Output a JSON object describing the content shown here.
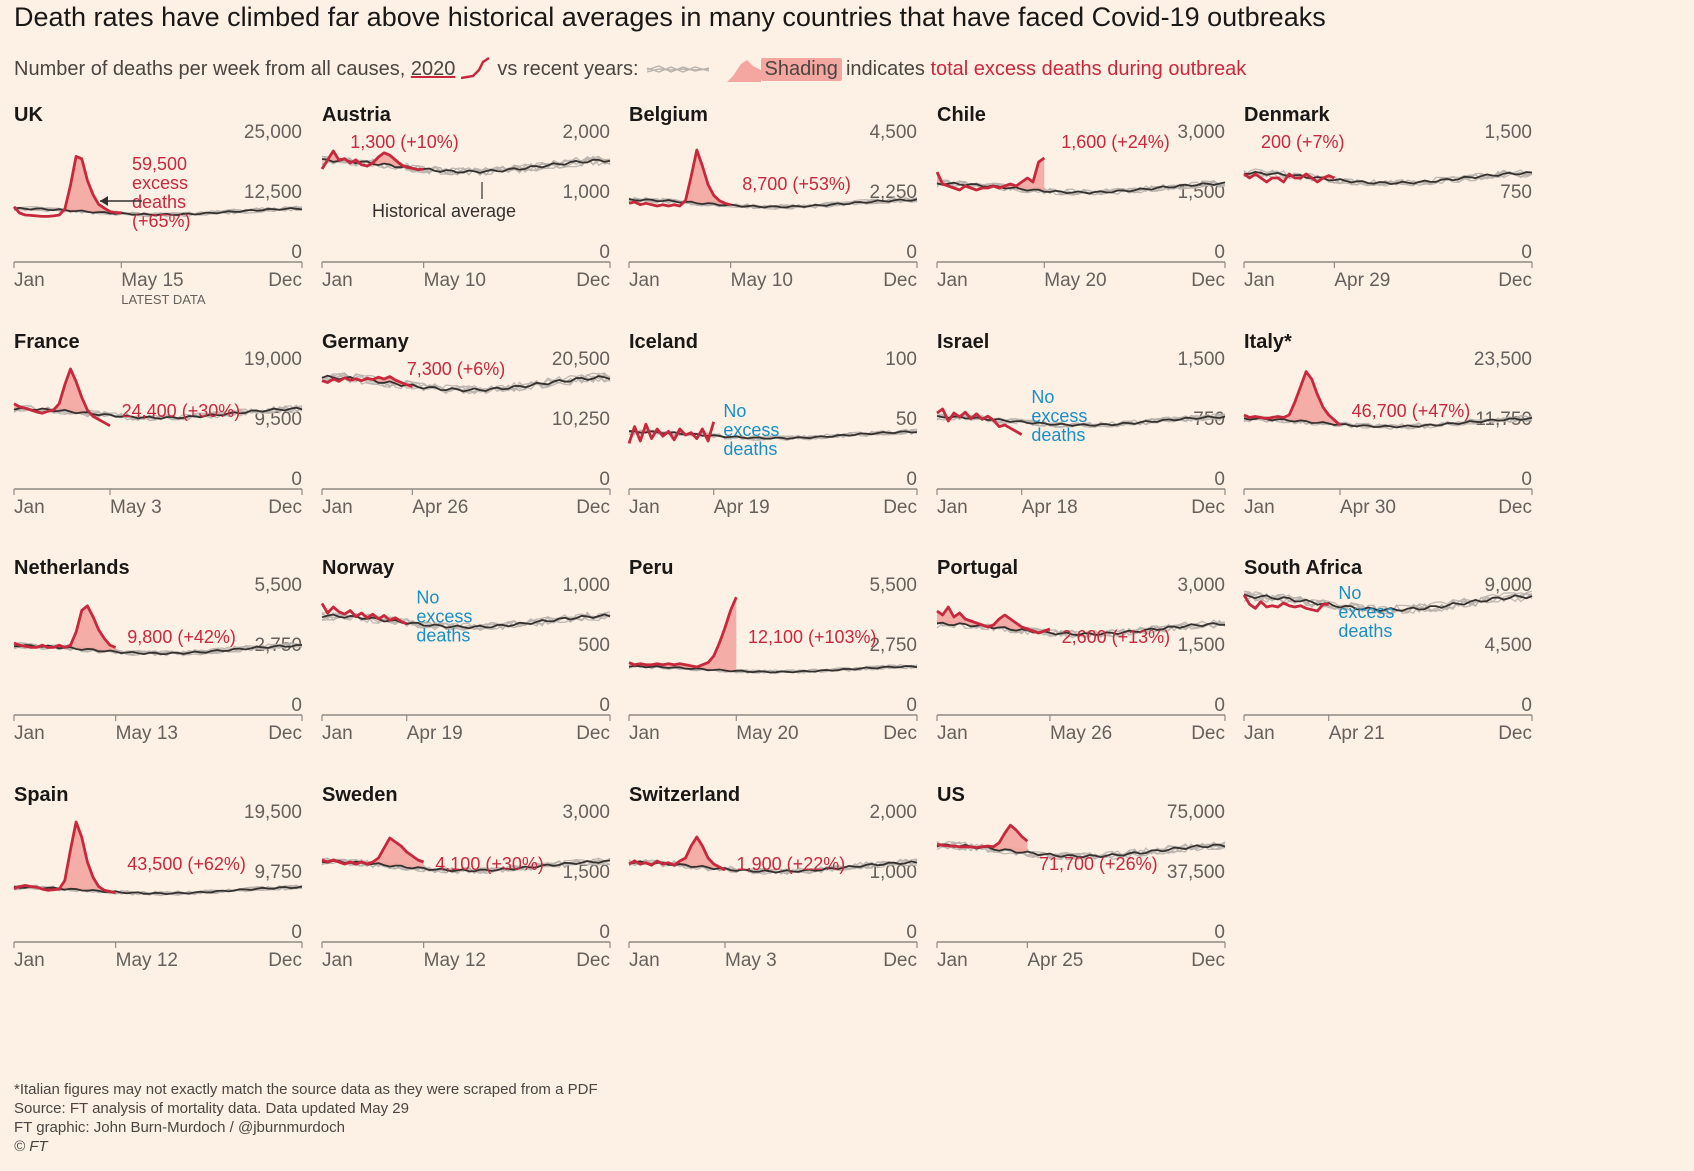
{
  "header": {
    "title": "Death rates have climbed far above historical averages in many countries that have faced Covid-19 outbreaks",
    "subtitle_part1": "Number of deaths per week from all causes,",
    "subtitle_2020": "2020",
    "subtitle_part2": "vs recent years:",
    "subtitle_shading": "Shading",
    "subtitle_part3": "indicates",
    "subtitle_excess": "total excess deaths during outbreak"
  },
  "footer": {
    "note": "*Italian figures may not exactly match the source data as they were scraped from a PDF",
    "source": "Source: FT analysis of mortality data. Data updated May 29",
    "graphic": "FT graphic: John Burn-Murdoch / @jburnmurdoch",
    "copyright": "© FT"
  },
  "colors": {
    "red": "#c8283c",
    "blue": "#1a8fc4",
    "shade": "#f4a6a0",
    "avg": "#33302e",
    "hist": "#b9b3ad"
  },
  "chart_data": [
    {
      "type": "line",
      "title": "UK",
      "ylim": [
        0,
        25000
      ],
      "ytick_labels": [
        "25,000",
        "12,500",
        "0"
      ],
      "x_ticks": [
        "Jan",
        "May 15",
        "Dec"
      ],
      "latest_note": "LATEST DATA",
      "latest_week": 20,
      "baseline": 10500,
      "y2020": [
        11500,
        10200,
        9800,
        9700,
        9600,
        9500,
        9500,
        9600,
        9800,
        11000,
        16000,
        22000,
        21500,
        17000,
        14000,
        12000,
        11200,
        10500,
        10300,
        10200
      ],
      "annotation": [
        "59,500",
        "excess",
        "deaths",
        "(+65%)"
      ],
      "annotation_color": "red",
      "annotation_pos": "mid-right",
      "arrow": true
    },
    {
      "type": "line",
      "title": "Austria",
      "ylim": [
        0,
        2000
      ],
      "ytick_labels": [
        "2,000",
        "1,000",
        "0"
      ],
      "x_ticks": [
        "Jan",
        "May 10",
        "Dec"
      ],
      "latest_week": 19,
      "baseline": 1600,
      "y2020": [
        1550,
        1700,
        1850,
        1700,
        1720,
        1650,
        1700,
        1620,
        1600,
        1650,
        1750,
        1820,
        1780,
        1700,
        1620,
        1580,
        1560,
        1540,
        1550
      ],
      "annotation": [
        "1,300 (+10%)"
      ],
      "annotation_color": "red",
      "annotation_pos": "top",
      "avg_label": "Historical average"
    },
    {
      "type": "line",
      "title": "Belgium",
      "ylim": [
        0,
        4500
      ],
      "ytick_labels": [
        "4,500",
        "2,250",
        "0"
      ],
      "x_ticks": [
        "Jan",
        "May 10",
        "Dec"
      ],
      "latest_week": 19,
      "baseline": 2200,
      "y2020": [
        2200,
        2250,
        2150,
        2200,
        2150,
        2100,
        2150,
        2100,
        2150,
        2100,
        2300,
        3200,
        4200,
        3600,
        2900,
        2500,
        2300,
        2200,
        2150
      ],
      "annotation": [
        "8,700 (+53%)"
      ],
      "annotation_color": "red",
      "annotation_pos": "mid"
    },
    {
      "type": "line",
      "title": "Chile",
      "ylim": [
        0,
        3000
      ],
      "ytick_labels": [
        "3,000",
        "1,500",
        "0"
      ],
      "x_ticks": [
        "Jan",
        "May 20",
        "Dec"
      ],
      "latest_week": 20,
      "baseline": 1850,
      "y2020": [
        2250,
        1950,
        1900,
        1850,
        1800,
        1900,
        1850,
        1800,
        1850,
        1850,
        1900,
        1850,
        1900,
        1950,
        1900,
        2000,
        2100,
        2000,
        2500,
        2600
      ],
      "annotation": [
        "1,600 (+24%)"
      ],
      "annotation_color": "red",
      "annotation_pos": "top"
    },
    {
      "type": "line",
      "title": "Denmark",
      "ylim": [
        0,
        1500
      ],
      "ytick_labels": [
        "1,500",
        "750",
        "0"
      ],
      "x_ticks": [
        "Jan",
        "Apr 29",
        "Dec"
      ],
      "latest_week": 17,
      "baseline": 1050,
      "y2020": [
        1100,
        1050,
        1100,
        1050,
        1000,
        1050,
        1050,
        1000,
        1100,
        1050,
        1050,
        1100,
        1050,
        1000,
        1050,
        1080,
        1050
      ],
      "annotation": [
        "200 (+7%)"
      ],
      "annotation_color": "red",
      "annotation_pos": "top"
    },
    {
      "type": "line",
      "title": "France",
      "ylim": [
        0,
        19000
      ],
      "ytick_labels": [
        "19,000",
        "9,500",
        "0"
      ],
      "x_ticks": [
        "Jan",
        "May 3",
        "Dec"
      ],
      "latest_week": 18,
      "baseline": 12000,
      "y2020": [
        13500,
        13000,
        12800,
        12500,
        12200,
        12000,
        12300,
        12500,
        13500,
        16500,
        19000,
        17000,
        14500,
        12500,
        11500,
        11000,
        10500,
        10000
      ],
      "annotation": [
        "24,400 (+30%)"
      ],
      "annotation_color": "red",
      "annotation_pos": "mid"
    },
    {
      "type": "line",
      "title": "Germany",
      "ylim": [
        0,
        20500
      ],
      "ytick_labels": [
        "20,500",
        "10,250",
        "0"
      ],
      "x_ticks": [
        "Jan",
        "Apr 26",
        "Dec"
      ],
      "latest_week": 17,
      "baseline": 18000,
      "y2020": [
        18500,
        18200,
        18800,
        18400,
        19000,
        18600,
        18800,
        18500,
        18900,
        18700,
        19100,
        18800,
        19200,
        18600,
        18200,
        17800,
        17500
      ],
      "annotation": [
        "7,300 (+6%)"
      ],
      "annotation_color": "red",
      "annotation_pos": "top"
    },
    {
      "type": "line",
      "title": "Iceland",
      "ylim": [
        0,
        100
      ],
      "ytick_labels": [
        "100",
        "50",
        "0"
      ],
      "x_ticks": [
        "Jan",
        "Apr 19",
        "Dec"
      ],
      "latest_week": 16,
      "baseline": 45,
      "y2020": [
        38,
        52,
        40,
        54,
        42,
        50,
        44,
        48,
        41,
        50,
        45,
        47,
        42,
        50,
        40,
        56
      ],
      "annotation": [
        "No",
        "excess",
        "deaths"
      ],
      "annotation_color": "blue",
      "annotation_pos": "mid"
    },
    {
      "type": "line",
      "title": "Israel",
      "ylim": [
        0,
        1500
      ],
      "ytick_labels": [
        "1,500",
        "750",
        "0"
      ],
      "x_ticks": [
        "Jan",
        "Apr 18",
        "Dec"
      ],
      "latest_week": 16,
      "baseline": 850,
      "y2020": [
        950,
        1000,
        850,
        950,
        900,
        960,
        880,
        940,
        870,
        910,
        860,
        780,
        800,
        760,
        720,
        680
      ],
      "annotation": [
        "No",
        "excess",
        "deaths"
      ],
      "annotation_color": "blue",
      "annotation_pos": "mid"
    },
    {
      "type": "line",
      "title": "Italy*",
      "ylim": [
        0,
        23500
      ],
      "ytick_labels": [
        "23,500",
        "11,750",
        "0"
      ],
      "x_ticks": [
        "Jan",
        "Apr 30",
        "Dec"
      ],
      "latest_week": 18,
      "baseline": 13000,
      "y2020": [
        14500,
        14000,
        14200,
        14000,
        13800,
        14000,
        14200,
        14000,
        14500,
        17000,
        20000,
        23000,
        21500,
        18500,
        16000,
        14500,
        13500,
        12500
      ],
      "annotation": [
        "46,700 (+47%)"
      ],
      "annotation_color": "red",
      "annotation_pos": "mid"
    },
    {
      "type": "line",
      "title": "Netherlands",
      "ylim": [
        0,
        5500
      ],
      "ytick_labels": [
        "5,500",
        "2,750",
        "0"
      ],
      "x_ticks": [
        "Jan",
        "May 13",
        "Dec"
      ],
      "latest_week": 19,
      "baseline": 3000,
      "y2020": [
        3300,
        3200,
        3150,
        3100,
        3100,
        3200,
        3100,
        3100,
        3200,
        3100,
        3200,
        3800,
        4800,
        5000,
        4500,
        3900,
        3500,
        3200,
        3100
      ],
      "annotation": [
        "9,800 (+42%)"
      ],
      "annotation_color": "red",
      "annotation_pos": "mid"
    },
    {
      "type": "line",
      "title": "Norway",
      "ylim": [
        0,
        1000
      ],
      "ytick_labels": [
        "1,000",
        "500",
        "0"
      ],
      "x_ticks": [
        "Jan",
        "Apr 19",
        "Dec"
      ],
      "latest_week": 16,
      "baseline": 780,
      "y2020": [
        930,
        850,
        900,
        860,
        840,
        870,
        820,
        850,
        810,
        840,
        800,
        830,
        790,
        810,
        780,
        760
      ],
      "annotation": [
        "No",
        "excess",
        "deaths"
      ],
      "annotation_color": "blue",
      "annotation_pos": "mid"
    },
    {
      "type": "line",
      "title": "Peru",
      "ylim": [
        0,
        5500
      ],
      "ytick_labels": [
        "5,500",
        "2,750",
        "0"
      ],
      "x_ticks": [
        "Jan",
        "May 20",
        "Dec"
      ],
      "latest_week": 20,
      "baseline": 2100,
      "y2020": [
        2400,
        2300,
        2350,
        2300,
        2300,
        2350,
        2300,
        2350,
        2300,
        2350,
        2300,
        2250,
        2200,
        2300,
        2400,
        2700,
        3300,
        4000,
        4800,
        5400
      ],
      "annotation": [
        "12,100 (+103%)"
      ],
      "annotation_color": "red",
      "annotation_pos": "mid"
    },
    {
      "type": "line",
      "title": "Portugal",
      "ylim": [
        0,
        3000
      ],
      "ytick_labels": [
        "3,000",
        "1,500",
        "0"
      ],
      "x_ticks": [
        "Jan",
        "May 26",
        "Dec"
      ],
      "latest_week": 21,
      "baseline": 2150,
      "y2020": [
        2600,
        2500,
        2700,
        2450,
        2550,
        2400,
        2350,
        2300,
        2250,
        2200,
        2250,
        2400,
        2500,
        2400,
        2300,
        2200,
        2150,
        2100,
        2050,
        2100,
        2150
      ],
      "annotation": [
        "2,600 (+13%)"
      ],
      "annotation_color": "red",
      "annotation_pos": "mid"
    },
    {
      "type": "line",
      "title": "South Africa",
      "ylim": [
        0,
        9000
      ],
      "ytick_labels": [
        "9,000",
        "4,500",
        "0"
      ],
      "x_ticks": [
        "Jan",
        "Apr 21",
        "Dec"
      ],
      "latest_week": 16,
      "baseline": 8400,
      "y2020": [
        9000,
        8300,
        8000,
        8500,
        8100,
        8200,
        8100,
        8400,
        8200,
        8100,
        8200,
        8000,
        7900,
        7800,
        8300,
        8300
      ],
      "annotation": [
        "No",
        "excess",
        "deaths"
      ],
      "annotation_color": "blue",
      "annotation_pos": "mid"
    },
    {
      "type": "line",
      "title": "Spain",
      "ylim": [
        0,
        19500
      ],
      "ytick_labels": [
        "19,500",
        "9,750",
        "0"
      ],
      "x_ticks": [
        "Jan",
        "May 12",
        "Dec"
      ],
      "latest_week": 19,
      "baseline": 8400,
      "y2020": [
        8700,
        9000,
        9200,
        9000,
        8900,
        8600,
        8400,
        8500,
        8600,
        10000,
        15000,
        19500,
        17000,
        13000,
        10500,
        9000,
        8400,
        8200,
        8000
      ],
      "annotation": [
        "43,500 (+62%)"
      ],
      "annotation_color": "red",
      "annotation_pos": "mid"
    },
    {
      "type": "line",
      "title": "Sweden",
      "ylim": [
        0,
        3000
      ],
      "ytick_labels": [
        "3,000",
        "1,500",
        "0"
      ],
      "x_ticks": [
        "Jan",
        "May 12",
        "Dec"
      ],
      "latest_week": 19,
      "baseline": 1900,
      "y2020": [
        2050,
        2000,
        2050,
        2000,
        1950,
        2000,
        1950,
        2000,
        1950,
        2000,
        2100,
        2350,
        2600,
        2500,
        2400,
        2250,
        2150,
        2050,
        2000
      ],
      "annotation": [
        "4,100 (+30%)"
      ],
      "annotation_color": "red",
      "annotation_pos": "mid"
    },
    {
      "type": "line",
      "title": "Switzerland",
      "ylim": [
        0,
        2000
      ],
      "ytick_labels": [
        "2,000",
        "1,000",
        "0"
      ],
      "x_ticks": [
        "Jan",
        "May 3",
        "Dec"
      ],
      "latest_week": 18,
      "baseline": 1250,
      "y2020": [
        1300,
        1350,
        1300,
        1320,
        1280,
        1350,
        1300,
        1320,
        1280,
        1350,
        1400,
        1600,
        1750,
        1600,
        1400,
        1300,
        1250,
        1200
      ],
      "annotation": [
        "1,900 (+22%)"
      ],
      "annotation_color": "red",
      "annotation_pos": "mid"
    },
    {
      "type": "line",
      "title": "US",
      "ylim": [
        0,
        75000
      ],
      "ytick_labels": [
        "75,000",
        "37,500",
        "0"
      ],
      "x_ticks": [
        "Jan",
        "Apr 25",
        "Dec"
      ],
      "latest_week": 17,
      "baseline": 57000,
      "y2020": [
        61000,
        60500,
        60000,
        60000,
        59500,
        59500,
        59500,
        59000,
        59500,
        60000,
        59500,
        62000,
        68000,
        73000,
        70000,
        66000,
        63000
      ],
      "annotation": [
        "71,700 (+26%)"
      ],
      "annotation_color": "red",
      "annotation_pos": "mid"
    }
  ]
}
